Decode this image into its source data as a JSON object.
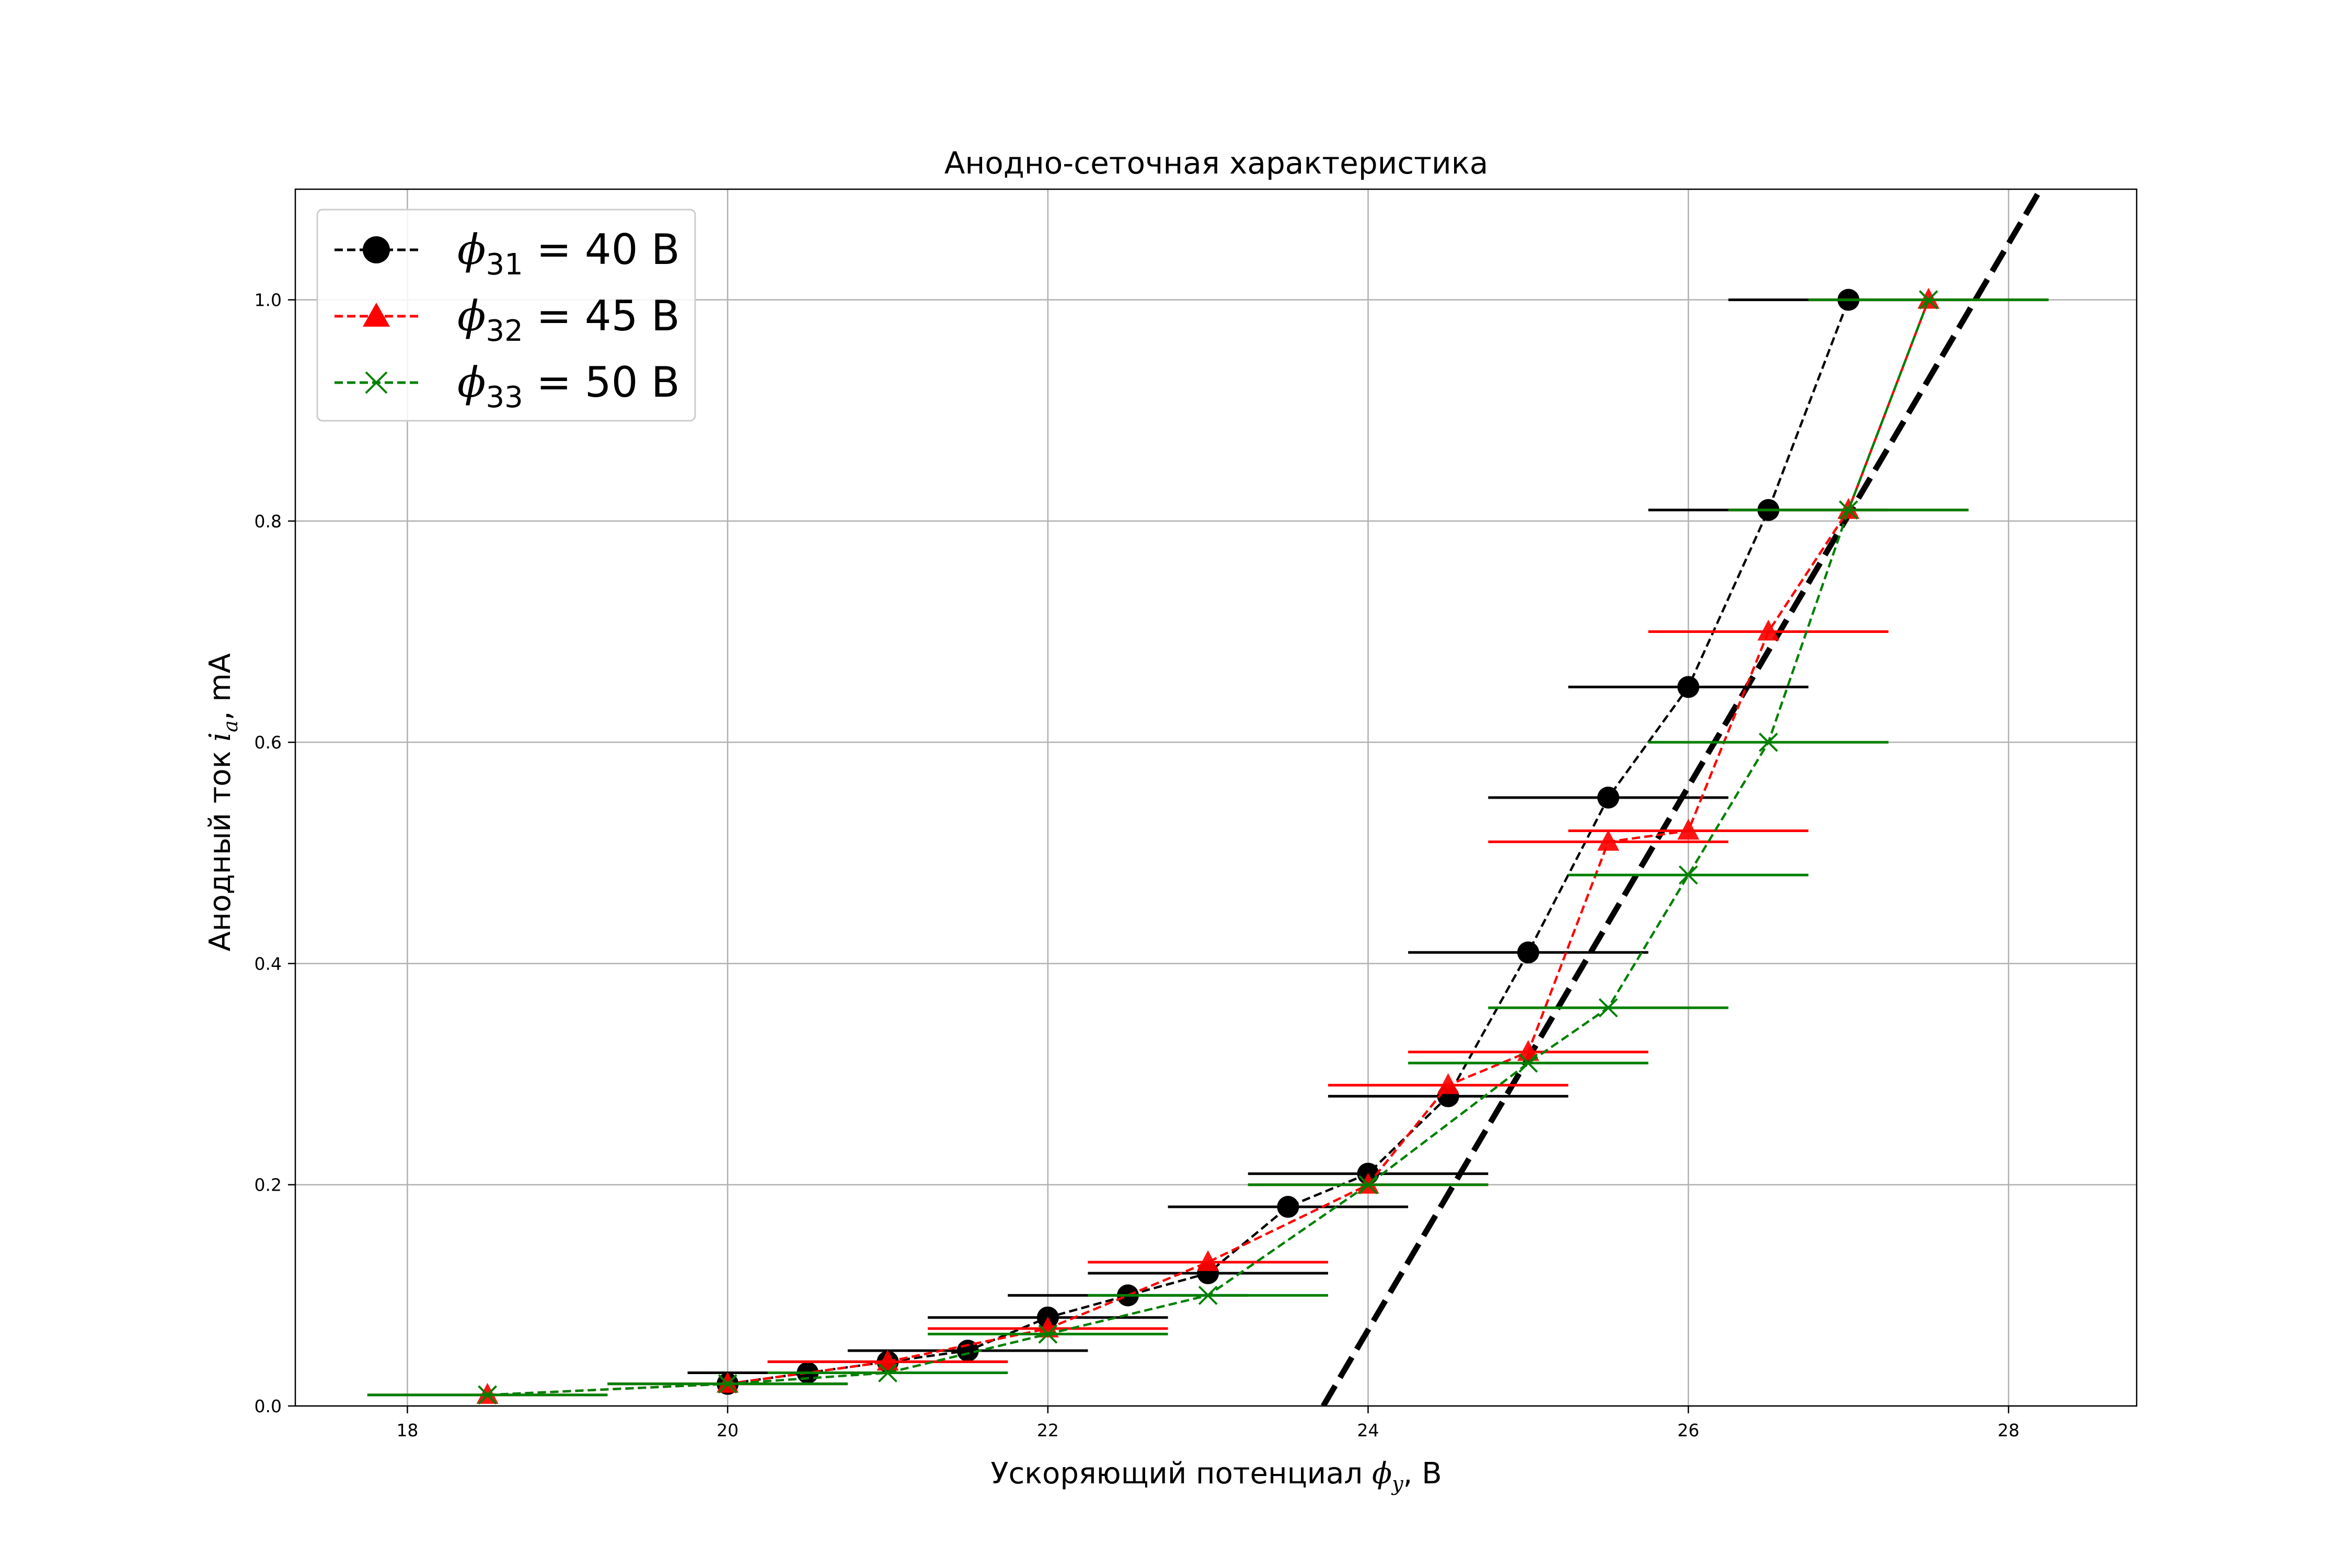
{
  "chart_data": {
    "type": "line",
    "title": "Анодно-сеточная характеристика",
    "xlabel": {
      "prefix": "Ускоряющий потенциал ",
      "symbol": "ϕ",
      "sub": "y",
      "suffix": ", В"
    },
    "ylabel": {
      "prefix": "Анодный ток ",
      "symbol": "i",
      "sub": "a",
      "suffix": ",  mA"
    },
    "xlim": [
      17.3,
      28.8
    ],
    "ylim": [
      0.0,
      1.1
    ],
    "xticks": [
      18,
      20,
      22,
      24,
      26,
      28
    ],
    "yticks": [
      0.0,
      0.2,
      0.4,
      0.6,
      0.8,
      1.0
    ],
    "xtick_labels": [
      "18",
      "20",
      "22",
      "24",
      "26",
      "28"
    ],
    "ytick_labels": [
      "0.0",
      "0.2",
      "0.4",
      "0.6",
      "0.8",
      "1.0"
    ],
    "grid": true,
    "legend_position": "top-left",
    "series": [
      {
        "name": "ϕ31 = 40 В",
        "legend": {
          "symbol": "ϕ",
          "sub": "31",
          "rest": " = 40 В"
        },
        "color": "#000000",
        "marker": "circle",
        "x_error": 0.75,
        "x": [
          20.0,
          20.5,
          21.0,
          21.5,
          22.0,
          22.5,
          23.0,
          23.5,
          24.0,
          24.5,
          25.0,
          25.5,
          26.0,
          26.5,
          27.0
        ],
        "y": [
          0.02,
          0.03,
          0.04,
          0.05,
          0.08,
          0.1,
          0.12,
          0.18,
          0.21,
          0.28,
          0.41,
          0.55,
          0.65,
          0.81,
          1.0
        ]
      },
      {
        "name": "ϕ32 = 45 В",
        "legend": {
          "symbol": "ϕ",
          "sub": "32",
          "rest": " = 45 В"
        },
        "color": "#ff0000",
        "marker": "triangle",
        "x_error": 0.75,
        "x": [
          18.5,
          20.0,
          21.0,
          22.0,
          23.0,
          24.0,
          24.5,
          25.0,
          25.5,
          26.0,
          26.5,
          27.0,
          27.5
        ],
        "y": [
          0.01,
          0.02,
          0.04,
          0.07,
          0.13,
          0.2,
          0.29,
          0.32,
          0.51,
          0.52,
          0.7,
          0.81,
          1.0
        ]
      },
      {
        "name": "ϕ33 = 50 В",
        "legend": {
          "symbol": "ϕ",
          "sub": "33",
          "rest": " = 50 В"
        },
        "color": "#008000",
        "marker": "x",
        "x_error": 0.75,
        "x": [
          18.5,
          20.0,
          21.0,
          22.0,
          23.0,
          24.0,
          25.0,
          25.5,
          26.0,
          26.5,
          27.0,
          27.5
        ],
        "y": [
          0.01,
          0.02,
          0.03,
          0.065,
          0.1,
          0.2,
          0.31,
          0.36,
          0.48,
          0.6,
          0.81,
          1.0
        ]
      }
    ],
    "fit_line": {
      "color": "#000000",
      "x": [
        23.72,
        28.2
      ],
      "y": [
        0.0,
        1.1
      ]
    }
  }
}
